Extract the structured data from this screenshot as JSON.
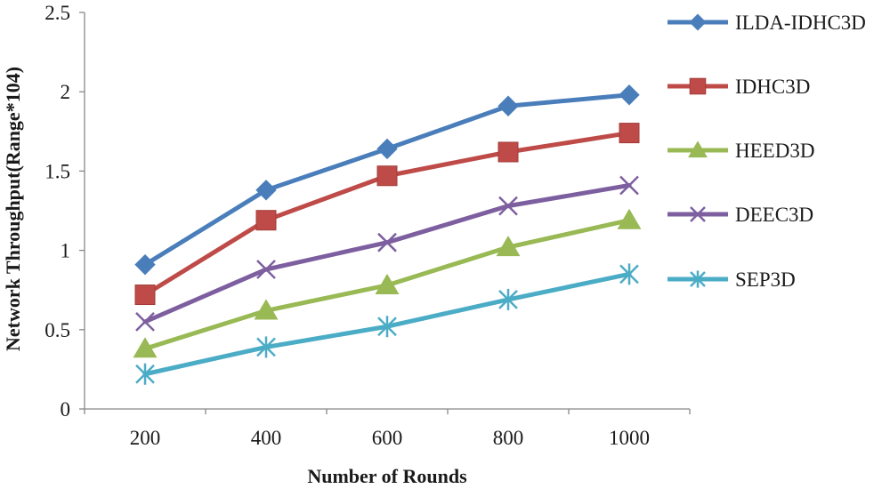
{
  "chart_data": {
    "type": "line",
    "title": "",
    "xlabel": "Number of Rounds",
    "ylabel": "Network Throughput(Range*104)",
    "categories": [
      "200",
      "400",
      "600",
      "800",
      "1000"
    ],
    "ylim": [
      0,
      2.5
    ],
    "yticks": [
      "0",
      "0.5",
      "1",
      "1.5",
      "2",
      "2.5"
    ],
    "grid": false,
    "legend_position": "right",
    "series": [
      {
        "name": "ILDA-IDHC3D",
        "values": [
          0.91,
          1.38,
          1.64,
          1.91,
          1.98
        ],
        "color": "#4a7ebb",
        "marker": "diamond"
      },
      {
        "name": "IDHC3D",
        "values": [
          0.72,
          1.19,
          1.47,
          1.62,
          1.74
        ],
        "color": "#be4b48",
        "marker": "square"
      },
      {
        "name": "HEED3D",
        "values": [
          0.38,
          0.62,
          0.78,
          1.02,
          1.19
        ],
        "color": "#98b954",
        "marker": "triangle"
      },
      {
        "name": "DEEC3D",
        "values": [
          0.55,
          0.88,
          1.05,
          1.28,
          1.41
        ],
        "color": "#7d5fa0",
        "marker": "x"
      },
      {
        "name": "SEP3D",
        "values": [
          0.22,
          0.39,
          0.52,
          0.69,
          0.85
        ],
        "color": "#4bacc6",
        "marker": "star"
      }
    ]
  }
}
